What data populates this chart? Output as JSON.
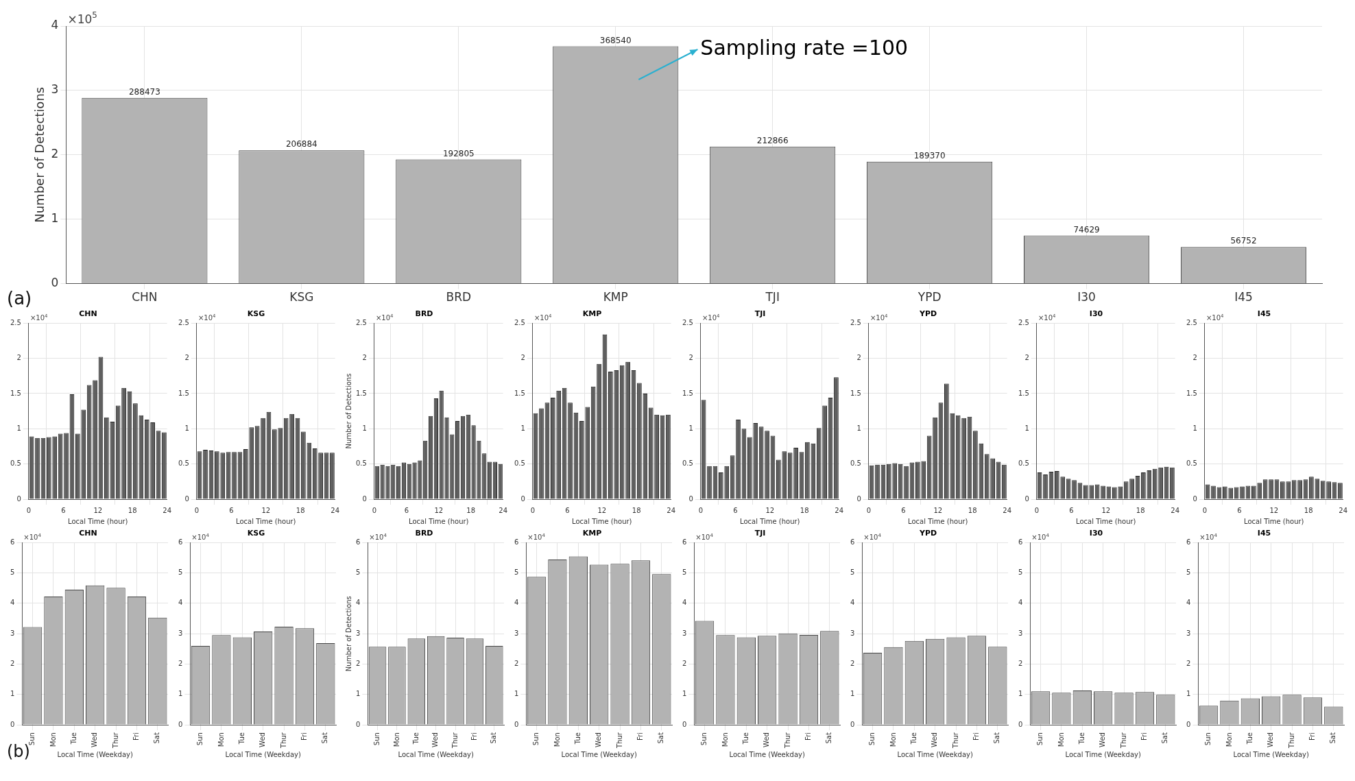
{
  "chart_data": [
    {
      "type": "bar",
      "ylabel": "Number of Detections",
      "categories": [
        "CHN",
        "KSG",
        "BRD",
        "KMP",
        "TJI",
        "YPD",
        "I30",
        "I45"
      ],
      "values": [
        2.88473,
        2.06884,
        1.92805,
        3.6854,
        2.12866,
        1.8937,
        0.74629,
        0.56752
      ],
      "color": "#b3b3b3",
      "ylim": [
        0,
        4
      ],
      "yticks": [
        0,
        1,
        2,
        3,
        4
      ],
      "grid": true,
      "annotations": [
        "×10$^{5}$",
        "(a)",
        "Sampling rate =100",
        {
          "text": "288473",
          "x": "CHN",
          "y": 2.88473
        },
        {
          "text": "206884",
          "x": "KSG",
          "y": 2.06884
        },
        {
          "text": "192805",
          "x": "BRD",
          "y": 1.92805
        },
        {
          "text": "368540",
          "x": "KMP",
          "y": 3.6854
        },
        {
          "text": "212866",
          "x": "TJI",
          "y": 2.12866
        },
        {
          "text": "189370",
          "x": "YPD",
          "y": 1.8937
        },
        {
          "text": "74629",
          "x": "I30",
          "y": 0.74629
        },
        {
          "text": "56752",
          "x": "I45",
          "y": 0.56752
        }
      ]
    },
    {
      "type": "histogram",
      "title": "CHN",
      "xlabel": "Local Time (hour)",
      "bins": [
        0,
        1,
        2,
        3,
        4,
        5,
        6,
        7,
        8,
        9,
        10,
        11,
        12,
        13,
        14,
        15,
        16,
        17,
        18,
        19,
        20,
        21,
        22,
        23,
        24
      ],
      "values": [
        0.89,
        0.87,
        0.87,
        0.88,
        0.89,
        0.93,
        0.94,
        1.49,
        0.93,
        1.27,
        1.62,
        1.69,
        2.02,
        1.16,
        1.1,
        1.33,
        1.58,
        1.53,
        1.36,
        1.19,
        1.13,
        1.09,
        0.97,
        0.95
      ],
      "color": "#5f5f5f",
      "xlim": [
        0,
        24
      ],
      "xticks": [
        0,
        6,
        12,
        18,
        24
      ],
      "ylim": [
        0,
        2.5
      ],
      "yticks": [
        0,
        0.5,
        1,
        1.5,
        2,
        2.5
      ],
      "grid": true,
      "annotations": [
        "×10$^{4}$"
      ]
    },
    {
      "type": "histogram",
      "title": "KSG",
      "xlabel": "Local Time (hour)",
      "bins": [
        0,
        1,
        2,
        3,
        4,
        5,
        6,
        7,
        8,
        9,
        10,
        11,
        12,
        13,
        14,
        15,
        16,
        17,
        18,
        19,
        20,
        21,
        22,
        23,
        24
      ],
      "values": [
        0.68,
        0.7,
        0.69,
        0.68,
        0.66,
        0.67,
        0.67,
        0.67,
        0.71,
        1.02,
        1.04,
        1.15,
        1.24,
        0.99,
        1.01,
        1.15,
        1.21,
        1.15,
        0.96,
        0.8,
        0.72,
        0.66,
        0.66,
        0.66
      ],
      "color": "#5f5f5f",
      "xlim": [
        0,
        24
      ],
      "xticks": [
        0,
        6,
        12,
        18,
        24
      ],
      "ylim": [
        0,
        2.5
      ],
      "yticks": [
        0,
        0.5,
        1,
        1.5,
        2,
        2.5
      ],
      "grid": true,
      "annotations": [
        "×10$^{4}$"
      ]
    },
    {
      "type": "histogram",
      "title": "BRD",
      "xlabel": "Local Time (hour)",
      "ylabel": "Number of Detections",
      "bins": [
        0,
        1,
        2,
        3,
        4,
        5,
        6,
        7,
        8,
        9,
        10,
        11,
        12,
        13,
        14,
        15,
        16,
        17,
        18,
        19,
        20,
        21,
        22,
        23,
        24
      ],
      "values": [
        0.47,
        0.49,
        0.47,
        0.49,
        0.47,
        0.52,
        0.5,
        0.52,
        0.55,
        0.83,
        1.18,
        1.43,
        1.54,
        1.16,
        0.92,
        1.11,
        1.18,
        1.2,
        1.05,
        0.83,
        0.65,
        0.53,
        0.53,
        0.5
      ],
      "color": "#5f5f5f",
      "xlim": [
        0,
        24
      ],
      "xticks": [
        0,
        6,
        12,
        18,
        24
      ],
      "ylim": [
        0,
        2.5
      ],
      "yticks": [
        0,
        0.5,
        1,
        1.5,
        2,
        2.5
      ],
      "grid": true,
      "annotations": [
        "×10$^{4}$"
      ]
    },
    {
      "type": "histogram",
      "title": "KMP",
      "xlabel": "Local Time (hour)",
      "bins": [
        0,
        1,
        2,
        3,
        4,
        5,
        6,
        7,
        8,
        9,
        10,
        11,
        12,
        13,
        14,
        15,
        16,
        17,
        18,
        19,
        20,
        21,
        22,
        23,
        24
      ],
      "values": [
        1.22,
        1.29,
        1.37,
        1.44,
        1.54,
        1.58,
        1.37,
        1.23,
        1.11,
        1.31,
        1.6,
        1.92,
        2.34,
        1.81,
        1.83,
        1.9,
        1.95,
        1.83,
        1.65,
        1.5,
        1.3,
        1.2,
        1.19,
        1.2
      ],
      "color": "#5f5f5f",
      "xlim": [
        0,
        24
      ],
      "xticks": [
        0,
        6,
        12,
        18,
        24
      ],
      "ylim": [
        0,
        2.5
      ],
      "yticks": [
        0,
        0.5,
        1,
        1.5,
        2,
        2.5
      ],
      "grid": true,
      "annotations": [
        "×10$^{4}$"
      ]
    },
    {
      "type": "histogram",
      "title": "TJI",
      "xlabel": "Local Time (hour)",
      "bins": [
        0,
        1,
        2,
        3,
        4,
        5,
        6,
        7,
        8,
        9,
        10,
        11,
        12,
        13,
        14,
        15,
        16,
        17,
        18,
        19,
        20,
        21,
        22,
        23,
        24
      ],
      "values": [
        1.41,
        0.47,
        0.47,
        0.38,
        0.47,
        0.62,
        1.13,
        1.0,
        0.88,
        1.08,
        1.03,
        0.97,
        0.9,
        0.56,
        0.68,
        0.66,
        0.73,
        0.67,
        0.81,
        0.79,
        1.01,
        1.33,
        1.44,
        1.73
      ],
      "color": "#5f5f5f",
      "xlim": [
        0,
        24
      ],
      "xticks": [
        0,
        6,
        12,
        18,
        24
      ],
      "ylim": [
        0,
        2.5
      ],
      "yticks": [
        0,
        0.5,
        1,
        1.5,
        2,
        2.5
      ],
      "grid": true,
      "annotations": [
        "×10$^{4}$"
      ]
    },
    {
      "type": "histogram",
      "title": "YPD",
      "xlabel": "Local Time (hour)",
      "bins": [
        0,
        1,
        2,
        3,
        4,
        5,
        6,
        7,
        8,
        9,
        10,
        11,
        12,
        13,
        14,
        15,
        16,
        17,
        18,
        19,
        20,
        21,
        22,
        23,
        24
      ],
      "values": [
        0.48,
        0.49,
        0.49,
        0.5,
        0.51,
        0.5,
        0.47,
        0.52,
        0.53,
        0.54,
        0.9,
        1.16,
        1.37,
        1.64,
        1.22,
        1.19,
        1.15,
        1.17,
        0.97,
        0.79,
        0.64,
        0.58,
        0.53,
        0.49
      ],
      "color": "#5f5f5f",
      "xlim": [
        0,
        24
      ],
      "xticks": [
        0,
        6,
        12,
        18,
        24
      ],
      "ylim": [
        0,
        2.5
      ],
      "yticks": [
        0,
        0.5,
        1,
        1.5,
        2,
        2.5
      ],
      "grid": true,
      "annotations": [
        "×10$^{4}$"
      ]
    },
    {
      "type": "histogram",
      "title": "I30",
      "xlabel": "Local Time (hour)",
      "bins": [
        0,
        1,
        2,
        3,
        4,
        5,
        6,
        7,
        8,
        9,
        10,
        11,
        12,
        13,
        14,
        15,
        16,
        17,
        18,
        19,
        20,
        21,
        22,
        23,
        24
      ],
      "values": [
        0.38,
        0.35,
        0.39,
        0.4,
        0.32,
        0.29,
        0.27,
        0.23,
        0.2,
        0.2,
        0.21,
        0.19,
        0.18,
        0.17,
        0.18,
        0.25,
        0.29,
        0.33,
        0.38,
        0.41,
        0.43,
        0.45,
        0.46,
        0.45
      ],
      "color": "#5f5f5f",
      "xlim": [
        0,
        24
      ],
      "xticks": [
        0,
        6,
        12,
        18,
        24
      ],
      "ylim": [
        0,
        2.5
      ],
      "yticks": [
        0,
        0.5,
        1,
        1.5,
        2,
        2.5
      ],
      "grid": true,
      "annotations": [
        "×10$^{4}$"
      ]
    },
    {
      "type": "histogram",
      "title": "I45",
      "xlabel": "Local Time (hour)",
      "bins": [
        0,
        1,
        2,
        3,
        4,
        5,
        6,
        7,
        8,
        9,
        10,
        11,
        12,
        13,
        14,
        15,
        16,
        17,
        18,
        19,
        20,
        21,
        22,
        23,
        24
      ],
      "values": [
        0.21,
        0.19,
        0.17,
        0.18,
        0.16,
        0.17,
        0.18,
        0.19,
        0.19,
        0.23,
        0.28,
        0.28,
        0.28,
        0.25,
        0.25,
        0.27,
        0.27,
        0.28,
        0.32,
        0.29,
        0.26,
        0.25,
        0.24,
        0.23
      ],
      "color": "#5f5f5f",
      "xlim": [
        0,
        24
      ],
      "xticks": [
        0,
        6,
        12,
        18,
        24
      ],
      "ylim": [
        0,
        2.5
      ],
      "yticks": [
        0,
        0.5,
        1,
        1.5,
        2,
        2.5
      ],
      "grid": true,
      "annotations": [
        "×10$^{4}$"
      ]
    },
    {
      "type": "bar",
      "title": "CHN",
      "xlabel": "Local Time (Weekday)",
      "categories": [
        "Sun",
        "Mon",
        "Tue",
        "Wed",
        "Thur",
        "Fri",
        "Sat"
      ],
      "values": [
        3.22,
        4.22,
        4.45,
        4.59,
        4.51,
        4.22,
        3.53
      ],
      "color": "#b3b3b3",
      "ylim": [
        0,
        6
      ],
      "yticks": [
        0,
        1,
        2,
        3,
        4,
        5,
        6
      ],
      "grid": true,
      "annotations": [
        "×10$^{4}$",
        "(b)"
      ]
    },
    {
      "type": "bar",
      "title": "KSG",
      "xlabel": "Local Time (Weekday)",
      "categories": [
        "Sun",
        "Mon",
        "Tue",
        "Wed",
        "Thur",
        "Fri",
        "Sat"
      ],
      "values": [
        2.6,
        2.95,
        2.88,
        3.07,
        3.23,
        3.18,
        2.69
      ],
      "color": "#b3b3b3",
      "ylim": [
        0,
        6
      ],
      "yticks": [
        0,
        1,
        2,
        3,
        4,
        5,
        6
      ],
      "grid": true,
      "annotations": [
        "×10$^{4}$"
      ]
    },
    {
      "type": "bar",
      "title": "BRD",
      "xlabel": "Local Time (Weekday)",
      "ylabel": "Number of Detections",
      "categories": [
        "Sun",
        "Mon",
        "Tue",
        "Wed",
        "Thur",
        "Fri",
        "Sat"
      ],
      "values": [
        2.57,
        2.57,
        2.84,
        2.92,
        2.87,
        2.84,
        2.6
      ],
      "color": "#b3b3b3",
      "ylim": [
        0,
        6
      ],
      "yticks": [
        0,
        1,
        2,
        3,
        4,
        5,
        6
      ],
      "grid": true,
      "annotations": [
        "×10$^{4}$"
      ]
    },
    {
      "type": "bar",
      "title": "KMP",
      "xlabel": "Local Time (Weekday)",
      "categories": [
        "Sun",
        "Mon",
        "Tue",
        "Wed",
        "Thur",
        "Fri",
        "Sat"
      ],
      "values": [
        4.87,
        5.44,
        5.54,
        5.27,
        5.3,
        5.41,
        4.96
      ],
      "color": "#b3b3b3",
      "ylim": [
        0,
        6
      ],
      "yticks": [
        0,
        1,
        2,
        3,
        4,
        5,
        6
      ],
      "grid": true,
      "annotations": [
        "×10$^{4}$"
      ]
    },
    {
      "type": "bar",
      "title": "TJI",
      "xlabel": "Local Time (Weekday)",
      "categories": [
        "Sun",
        "Mon",
        "Tue",
        "Wed",
        "Thur",
        "Fri",
        "Sat"
      ],
      "values": [
        3.42,
        2.95,
        2.88,
        2.93,
        3.01,
        2.96,
        3.09
      ],
      "color": "#b3b3b3",
      "ylim": [
        0,
        6
      ],
      "yticks": [
        0,
        1,
        2,
        3,
        4,
        5,
        6
      ],
      "grid": true,
      "annotations": [
        "×10$^{4}$"
      ]
    },
    {
      "type": "bar",
      "title": "YPD",
      "xlabel": "Local Time (Weekday)",
      "categories": [
        "Sun",
        "Mon",
        "Tue",
        "Wed",
        "Thur",
        "Fri",
        "Sat"
      ],
      "values": [
        2.37,
        2.56,
        2.76,
        2.83,
        2.88,
        2.93,
        2.57
      ],
      "color": "#b3b3b3",
      "ylim": [
        0,
        6
      ],
      "yticks": [
        0,
        1,
        2,
        3,
        4,
        5,
        6
      ],
      "grid": true,
      "annotations": [
        "×10$^{4}$"
      ]
    },
    {
      "type": "bar",
      "title": "I30",
      "xlabel": "Local Time (Weekday)",
      "categories": [
        "Sun",
        "Mon",
        "Tue",
        "Wed",
        "Thur",
        "Fri",
        "Sat"
      ],
      "values": [
        1.1,
        1.06,
        1.13,
        1.1,
        1.06,
        1.08,
        0.99
      ],
      "color": "#b3b3b3",
      "ylim": [
        0,
        6
      ],
      "yticks": [
        0,
        1,
        2,
        3,
        4,
        5,
        6
      ],
      "grid": true,
      "annotations": [
        "×10$^{4}$"
      ]
    },
    {
      "type": "bar",
      "title": "I45",
      "xlabel": "Local Time (Weekday)",
      "categories": [
        "Sun",
        "Mon",
        "Tue",
        "Wed",
        "Thur",
        "Fri",
        "Sat"
      ],
      "values": [
        0.63,
        0.8,
        0.87,
        0.94,
        0.99,
        0.9,
        0.6
      ],
      "color": "#b3b3b3",
      "ylim": [
        0,
        6
      ],
      "yticks": [
        0,
        1,
        2,
        3,
        4,
        5,
        6
      ],
      "grid": true,
      "annotations": [
        "×10$^{4}$"
      ]
    }
  ]
}
